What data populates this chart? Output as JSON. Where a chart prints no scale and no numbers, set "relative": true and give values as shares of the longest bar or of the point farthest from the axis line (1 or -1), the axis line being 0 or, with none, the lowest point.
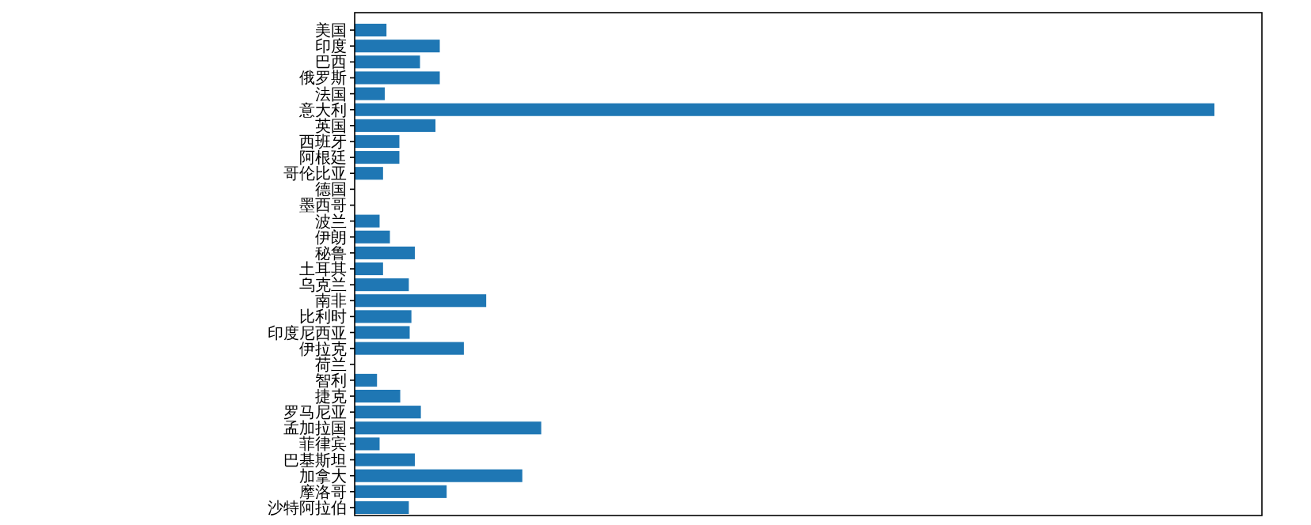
{
  "chart_data": {
    "type": "bar",
    "orientation": "horizontal",
    "relative": true,
    "color": "#1f77b4",
    "categories": [
      "美国",
      "印度",
      "巴西",
      "俄罗斯",
      "法国",
      "意大利",
      "英国",
      "西班牙",
      "阿根廷",
      "哥伦比亚",
      "德国",
      "墨西哥",
      "波兰",
      "伊朗",
      "秘鲁",
      "土耳其",
      "乌克兰",
      "南非",
      "比利时",
      "印度尼西亚",
      "伊拉克",
      "荷兰",
      "智利",
      "捷克",
      "罗马尼亚",
      "孟加拉国",
      "菲律宾",
      "巴基斯坦",
      "加拿大",
      "摩洛哥",
      "沙特阿拉伯"
    ],
    "values": [
      0.037,
      0.099,
      0.076,
      0.099,
      0.035,
      1,
      0.094,
      0.052,
      0.052,
      0.033,
      0,
      0,
      0.029,
      0.041,
      0.07,
      0.033,
      0.063,
      0.153,
      0.066,
      0.064,
      0.127,
      0,
      0.026,
      0.053,
      0.077,
      0.217,
      0.029,
      0.07,
      0.195,
      0.107,
      0.063
    ]
  }
}
